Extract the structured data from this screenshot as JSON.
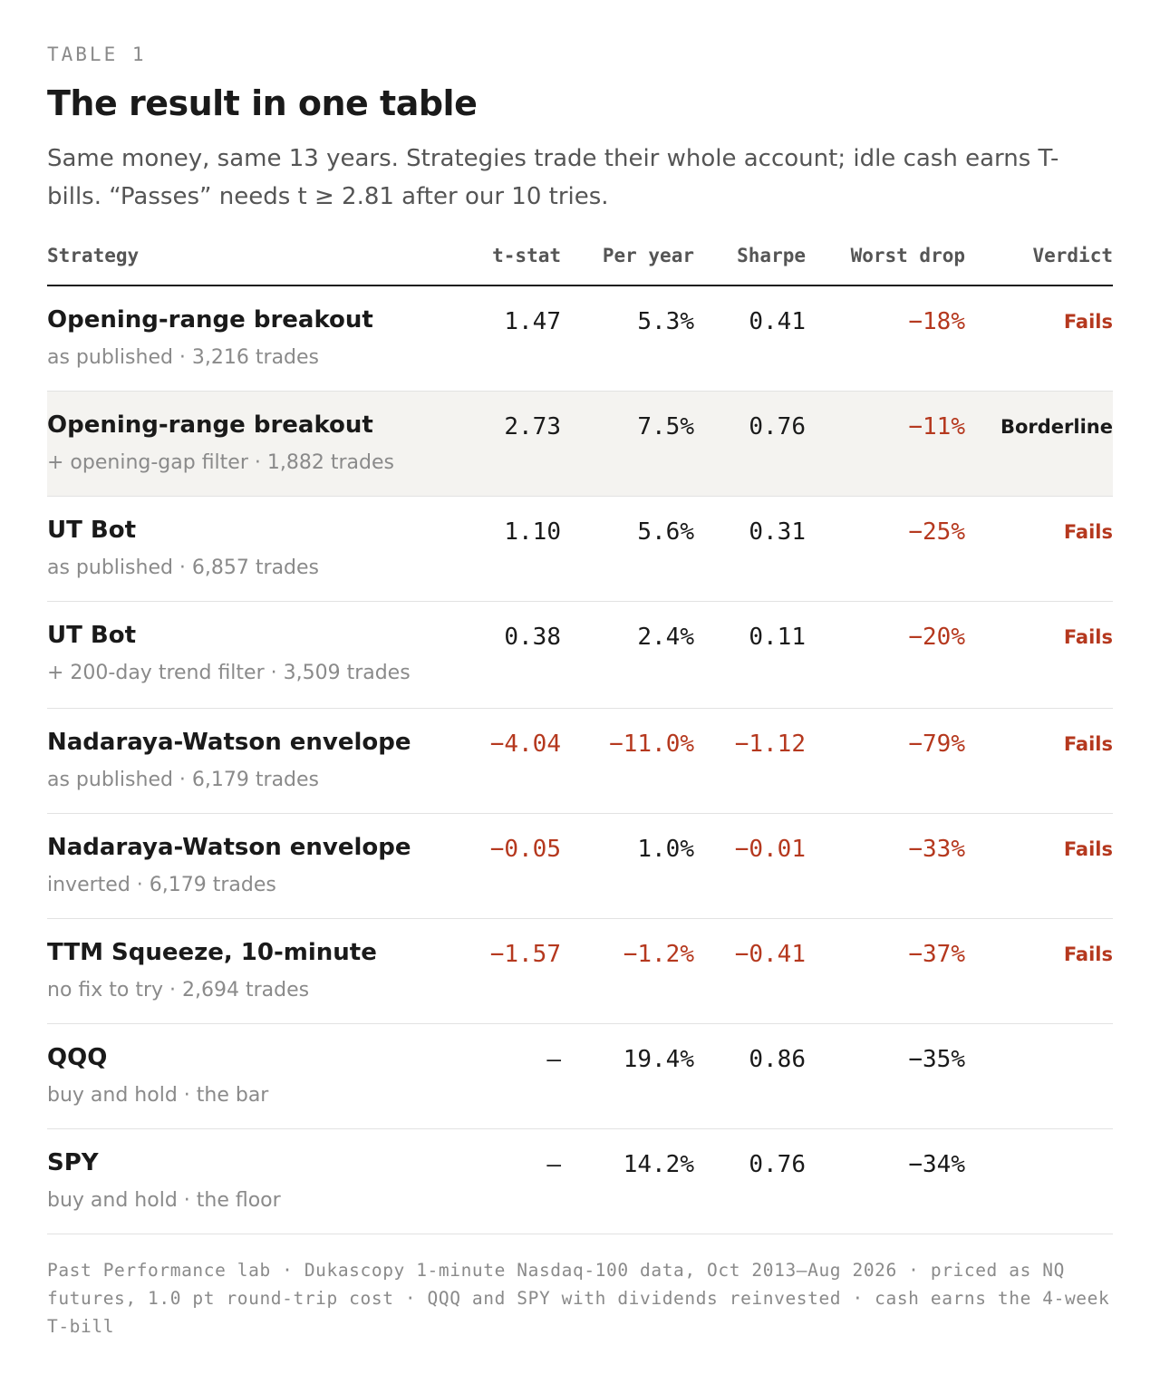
{
  "eyebrow": "TABLE 1",
  "title": "The result in one table",
  "subtitle": "Same money, same 13 years. Strategies trade their whole account; idle cash earns T-bills. “Passes” needs t ≥ 2.81 after our 10 tries.",
  "columns": {
    "strategy": "Strategy",
    "tstat": "t-stat",
    "per_year": "Per year",
    "sharpe": "Sharpe",
    "worst_drop": "Worst drop",
    "verdict": "Verdict"
  },
  "rows": [
    {
      "name": "Opening-range breakout",
      "detail": "as published · 3,216 trades",
      "tstat": "1.47",
      "per_year": "5.3%",
      "sharpe": "0.41",
      "worst_drop": "−18%",
      "verdict": "Fails"
    },
    {
      "name": "Opening-range breakout",
      "detail": "+ opening-gap filter · 1,882 trades",
      "tstat": "2.73",
      "per_year": "7.5%",
      "sharpe": "0.76",
      "worst_drop": "−11%",
      "verdict": "Borderline"
    },
    {
      "name": "UT Bot",
      "detail": "as published · 6,857 trades",
      "tstat": "1.10",
      "per_year": "5.6%",
      "sharpe": "0.31",
      "worst_drop": "−25%",
      "verdict": "Fails"
    },
    {
      "name": "UT Bot",
      "detail": "+ 200-day trend filter · 3,509 trades",
      "tstat": "0.38",
      "per_year": "2.4%",
      "sharpe": "0.11",
      "worst_drop": "−20%",
      "verdict": "Fails"
    },
    {
      "name": "Nadaraya-Watson envelope",
      "detail": "as published · 6,179 trades",
      "tstat": "−4.04",
      "per_year": "−11.0%",
      "sharpe": "−1.12",
      "worst_drop": "−79%",
      "verdict": "Fails"
    },
    {
      "name": "Nadaraya-Watson envelope",
      "detail": "inverted · 6,179 trades",
      "tstat": "−0.05",
      "per_year": "1.0%",
      "sharpe": "−0.01",
      "worst_drop": "−33%",
      "verdict": "Fails"
    },
    {
      "name": "TTM Squeeze, 10-minute",
      "detail": "no fix to try · 2,694 trades",
      "tstat": "−1.57",
      "per_year": "−1.2%",
      "sharpe": "−0.41",
      "worst_drop": "−37%",
      "verdict": "Fails"
    },
    {
      "name": "QQQ",
      "detail": "buy and hold · the bar",
      "tstat": "—",
      "per_year": "19.4%",
      "sharpe": "0.86",
      "worst_drop": "−35%",
      "verdict": ""
    },
    {
      "name": "SPY",
      "detail": "buy and hold · the floor",
      "tstat": "—",
      "per_year": "14.2%",
      "sharpe": "0.76",
      "worst_drop": "−34%",
      "verdict": ""
    }
  ],
  "colors": {
    "negative": "#b5381e",
    "highlight_row": "#f4f3f0"
  },
  "footer": "Past Performance lab · Dukascopy 1-minute Nasdaq-100 data, Oct 2013–Aug 2026 · priced as NQ futures, 1.0 pt round-trip cost · QQQ and SPY with dividends reinvested · cash earns the 4-week T-bill"
}
